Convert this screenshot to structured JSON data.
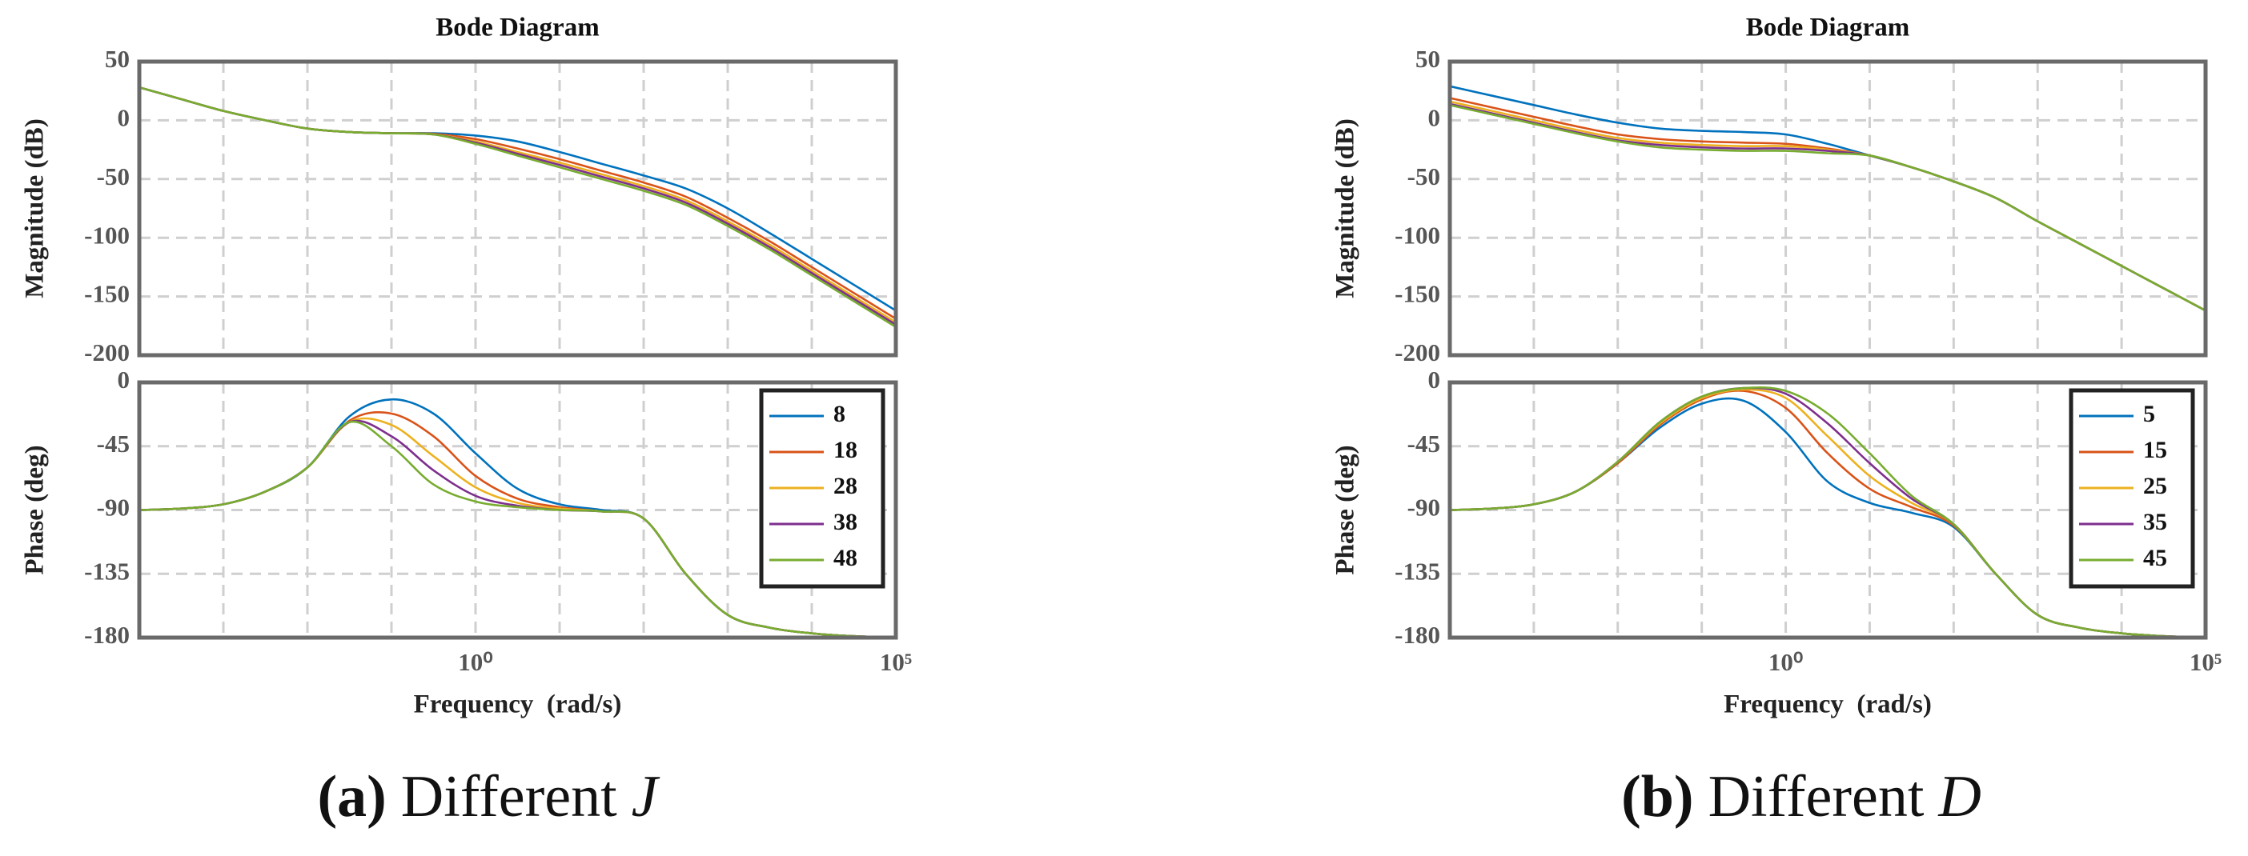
{
  "chart_data": [
    {
      "type": "line",
      "title": "Bode Diagram",
      "ylabel": "Magnitude (dB)",
      "log_x": true,
      "grid": true,
      "xlim": [
        0.0001,
        100000
      ],
      "ylim": [
        -200,
        50
      ],
      "yticks": [
        50,
        0,
        -50,
        -100,
        -150,
        -200
      ],
      "xticks": [
        {
          "value": 0.001,
          "label": null
        },
        {
          "value": 0.01,
          "label": null
        },
        {
          "value": 0.1,
          "label": null
        },
        {
          "value": 1,
          "label": null
        },
        {
          "value": 10,
          "label": null
        },
        {
          "value": 100,
          "label": null
        },
        {
          "value": 1000,
          "label": null
        },
        {
          "value": 10000,
          "label": null
        }
      ],
      "x": [
        0.0001,
        0.000316,
        0.001,
        0.00316,
        0.01,
        0.0316,
        0.1,
        0.316,
        1,
        3.16,
        10,
        31.6,
        100,
        316,
        1000,
        3162,
        10000,
        31623,
        100000
      ],
      "series": [
        {
          "name": "8",
          "color": "#0072BD",
          "values": [
            28,
            18,
            8,
            0,
            -7,
            -10,
            -11,
            -11,
            -13,
            -18,
            -27,
            -37,
            -47,
            -58,
            -75,
            -96,
            -118,
            -140,
            -162
          ]
        },
        {
          "name": "18",
          "color": "#D95319",
          "values": [
            28,
            18,
            8,
            0,
            -7,
            -10,
            -11,
            -11.5,
            -16,
            -24,
            -33,
            -43,
            -53,
            -65,
            -83,
            -103,
            -125,
            -147,
            -169
          ]
        },
        {
          "name": "28",
          "color": "#EDB120",
          "values": [
            28,
            18,
            8,
            0,
            -7,
            -10,
            -11,
            -12,
            -18,
            -27,
            -36,
            -46,
            -56,
            -68,
            -86,
            -106,
            -128,
            -150,
            -172
          ]
        },
        {
          "name": "38",
          "color": "#7E2F8E",
          "values": [
            28,
            18,
            8,
            0,
            -7,
            -10,
            -11,
            -12,
            -19,
            -28.5,
            -38,
            -48,
            -58,
            -70,
            -88,
            -108,
            -130,
            -152,
            -174
          ]
        },
        {
          "name": "48",
          "color": "#77AC30",
          "values": [
            28,
            18,
            8,
            0,
            -7,
            -10,
            -11,
            -12,
            -20,
            -30,
            -40,
            -50,
            -60,
            -72,
            -90,
            -110,
            -132,
            -154,
            -176
          ]
        }
      ]
    },
    {
      "type": "line",
      "ylabel": "Phase (deg)",
      "xlabel": "Frequency  (rad/s)",
      "log_x": true,
      "grid": true,
      "legend": "upper right",
      "xlim": [
        0.0001,
        100000
      ],
      "ylim": [
        -180,
        0
      ],
      "yticks": [
        0,
        -45,
        -90,
        -135,
        -180
      ],
      "xticks": [
        {
          "value": 0.001,
          "label": null
        },
        {
          "value": 0.01,
          "label": null
        },
        {
          "value": 0.1,
          "label": null
        },
        {
          "value": 1,
          "label": "10⁰"
        },
        {
          "value": 10,
          "label": null
        },
        {
          "value": 100,
          "label": null
        },
        {
          "value": 1000,
          "label": null
        },
        {
          "value": 10000,
          "label": null
        },
        {
          "value": 100000,
          "label": "10⁵"
        }
      ],
      "x": [
        0.0001,
        0.000316,
        0.001,
        0.00316,
        0.01,
        0.0316,
        0.1,
        0.316,
        1,
        3.16,
        10,
        31.6,
        100,
        316,
        1000,
        3162,
        10000,
        31623,
        100000
      ],
      "series": [
        {
          "name": "8",
          "color": "#0072BD",
          "values": [
            -90,
            -89,
            -86,
            -77,
            -60,
            -24,
            -12,
            -22,
            -50,
            -75,
            -86,
            -90,
            -96,
            -135,
            -164,
            -173,
            -177,
            -179,
            -180
          ]
        },
        {
          "name": "18",
          "color": "#D95319",
          "values": [
            -90,
            -89,
            -86,
            -77,
            -60,
            -27,
            -22,
            -38,
            -66,
            -82,
            -88,
            -91,
            -96,
            -135,
            -164,
            -173,
            -177,
            -179,
            -180
          ]
        },
        {
          "name": "28",
          "color": "#EDB120",
          "values": [
            -90,
            -89,
            -86,
            -77,
            -60,
            -28,
            -30,
            -52,
            -74,
            -85,
            -89,
            -91,
            -96,
            -135,
            -164,
            -173,
            -177,
            -179,
            -180
          ]
        },
        {
          "name": "38",
          "color": "#7E2F8E",
          "values": [
            -90,
            -89,
            -86,
            -77,
            -60,
            -28,
            -38,
            -62,
            -80,
            -87,
            -90,
            -91,
            -96,
            -135,
            -164,
            -173,
            -177,
            -179,
            -180
          ]
        },
        {
          "name": "48",
          "color": "#77AC30",
          "values": [
            -90,
            -89,
            -86,
            -77,
            -60,
            -28,
            -45,
            -72,
            -84,
            -88,
            -90,
            -91,
            -96,
            -135,
            -164,
            -173,
            -177,
            -179,
            -180
          ]
        }
      ]
    },
    {
      "type": "line",
      "title": "Bode Diagram",
      "ylabel": "Magnitude (dB)",
      "log_x": true,
      "grid": true,
      "xlim": [
        0.0001,
        100000
      ],
      "ylim": [
        -200,
        50
      ],
      "yticks": [
        50,
        0,
        -50,
        -100,
        -150,
        -200
      ],
      "xticks": [
        {
          "value": 0.001,
          "label": null
        },
        {
          "value": 0.01,
          "label": null
        },
        {
          "value": 0.1,
          "label": null
        },
        {
          "value": 1,
          "label": null
        },
        {
          "value": 10,
          "label": null
        },
        {
          "value": 100,
          "label": null
        },
        {
          "value": 1000,
          "label": null
        },
        {
          "value": 10000,
          "label": null
        }
      ],
      "x": [
        0.0001,
        0.000316,
        0.001,
        0.00316,
        0.01,
        0.0316,
        0.1,
        0.316,
        1,
        3.16,
        10,
        31.6,
        100,
        316,
        1000,
        3162,
        10000,
        31623,
        100000
      ],
      "series": [
        {
          "name": "5",
          "color": "#0072BD",
          "values": [
            29,
            21,
            13,
            5,
            -2,
            -7,
            -9,
            -10,
            -12,
            -20,
            -30,
            -40,
            -52,
            -66,
            -86,
            -105,
            -124,
            -143,
            -162
          ]
        },
        {
          "name": "15",
          "color": "#D95319",
          "values": [
            19,
            11,
            3,
            -5,
            -12,
            -16,
            -18,
            -19,
            -20,
            -24,
            -30,
            -40,
            -52,
            -66,
            -86,
            -105,
            -124,
            -143,
            -162
          ]
        },
        {
          "name": "25",
          "color": "#EDB120",
          "values": [
            16,
            8,
            0,
            -8,
            -15,
            -19,
            -21,
            -22,
            -22,
            -25,
            -30,
            -40,
            -52,
            -66,
            -86,
            -105,
            -124,
            -143,
            -162
          ]
        },
        {
          "name": "35",
          "color": "#7E2F8E",
          "values": [
            14,
            6,
            -2,
            -10,
            -17,
            -21,
            -23,
            -24,
            -24,
            -26,
            -30,
            -40,
            -52,
            -66,
            -86,
            -105,
            -124,
            -143,
            -162
          ]
        },
        {
          "name": "45",
          "color": "#77AC30",
          "values": [
            13,
            5,
            -3,
            -11,
            -18,
            -23,
            -25,
            -26,
            -26,
            -28,
            -30,
            -40,
            -52,
            -66,
            -86,
            -105,
            -124,
            -143,
            -162
          ]
        }
      ]
    },
    {
      "type": "line",
      "ylabel": "Phase (deg)",
      "xlabel": "Frequency  (rad/s)",
      "log_x": true,
      "grid": true,
      "legend": "upper right",
      "xlim": [
        0.0001,
        100000
      ],
      "ylim": [
        -180,
        0
      ],
      "yticks": [
        0,
        -45,
        -90,
        -135,
        -180
      ],
      "xticks": [
        {
          "value": 0.001,
          "label": null
        },
        {
          "value": 0.01,
          "label": null
        },
        {
          "value": 0.1,
          "label": null
        },
        {
          "value": 1,
          "label": "10⁰"
        },
        {
          "value": 10,
          "label": null
        },
        {
          "value": 100,
          "label": null
        },
        {
          "value": 1000,
          "label": null
        },
        {
          "value": 10000,
          "label": null
        },
        {
          "value": 100000,
          "label": "10⁵"
        }
      ],
      "x": [
        0.0001,
        0.000316,
        0.001,
        0.00316,
        0.01,
        0.0316,
        0.1,
        0.316,
        1,
        3.16,
        10,
        31.6,
        100,
        316,
        1000,
        3162,
        10000,
        31623,
        100000
      ],
      "series": [
        {
          "name": "5",
          "color": "#0072BD",
          "values": [
            -90,
            -89,
            -86,
            -77,
            -57,
            -32,
            -15,
            -13,
            -35,
            -70,
            -85,
            -92,
            -102,
            -135,
            -164,
            -173,
            -177,
            -179,
            -180
          ]
        },
        {
          "name": "15",
          "color": "#D95319",
          "values": [
            -90,
            -89,
            -86,
            -77,
            -57,
            -30,
            -12,
            -6,
            -18,
            -50,
            -75,
            -88,
            -101,
            -135,
            -164,
            -173,
            -177,
            -179,
            -180
          ]
        },
        {
          "name": "25",
          "color": "#EDB120",
          "values": [
            -90,
            -89,
            -86,
            -77,
            -56,
            -29,
            -11,
            -5,
            -11,
            -38,
            -66,
            -85,
            -100,
            -135,
            -164,
            -173,
            -177,
            -179,
            -180
          ]
        },
        {
          "name": "35",
          "color": "#7E2F8E",
          "values": [
            -90,
            -89,
            -86,
            -77,
            -56,
            -28,
            -10,
            -4,
            -8,
            -29,
            -57,
            -82,
            -100,
            -135,
            -164,
            -173,
            -177,
            -179,
            -180
          ]
        },
        {
          "name": "45",
          "color": "#77AC30",
          "values": [
            -90,
            -89,
            -86,
            -77,
            -56,
            -28,
            -10,
            -4,
            -6,
            -22,
            -50,
            -80,
            -100,
            -135,
            -164,
            -173,
            -177,
            -179,
            -180
          ]
        }
      ]
    }
  ],
  "captions": [
    {
      "label": "(a)",
      "text": "Different",
      "symbol": "J"
    },
    {
      "label": "(b)",
      "text": "Different",
      "symbol": "D"
    }
  ]
}
